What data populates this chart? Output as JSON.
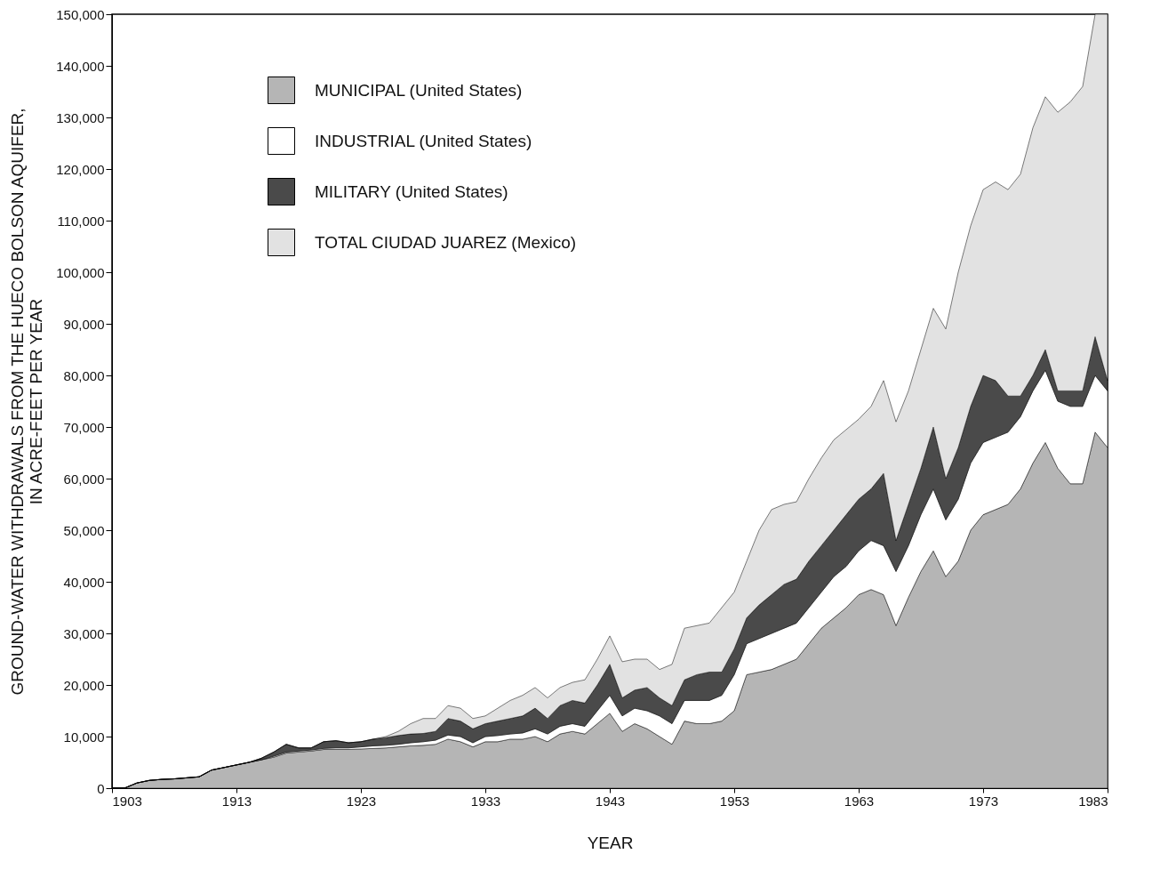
{
  "chart_data": {
    "type": "area",
    "stacked": true,
    "xlabel": "YEAR",
    "ylabel": "GROUND-WATER WITHDRAWALS FROM THE HUECO BOLSON AQUIFER,\nIN ACRE-FEET PER YEAR",
    "legend": "top left",
    "xlim": [
      1903,
      1983
    ],
    "ylim": [
      0,
      150000
    ],
    "xticks": [
      1903,
      1913,
      1923,
      1933,
      1943,
      1953,
      1963,
      1973,
      1983
    ],
    "yticks": [
      0,
      {
        "value": 10000,
        "label": "10,000"
      },
      {
        "value": 20000,
        "label": "20,000"
      },
      {
        "value": 30000,
        "label": "30,000"
      },
      {
        "value": 40000,
        "label": "40,000"
      },
      {
        "value": 50000,
        "label": "50,000"
      },
      {
        "value": 60000,
        "label": "60,000"
      },
      {
        "value": 70000,
        "label": "70,000"
      },
      {
        "value": 80000,
        "label": "80,000"
      },
      {
        "value": 90000,
        "label": "90,000"
      },
      {
        "value": 100000,
        "label": "100,000"
      },
      {
        "value": 110000,
        "label": "110,000"
      },
      {
        "value": 120000,
        "label": "120,000"
      },
      {
        "value": 130000,
        "label": "130,000"
      },
      {
        "value": 140000,
        "label": "140,000"
      },
      {
        "value": 150000,
        "label": "150,000"
      }
    ],
    "x": [
      1903,
      1904,
      1905,
      1906,
      1907,
      1908,
      1909,
      1910,
      1911,
      1912,
      1913,
      1914,
      1915,
      1916,
      1917,
      1918,
      1919,
      1920,
      1921,
      1922,
      1923,
      1924,
      1925,
      1926,
      1927,
      1928,
      1929,
      1930,
      1931,
      1932,
      1933,
      1934,
      1935,
      1936,
      1937,
      1938,
      1939,
      1940,
      1941,
      1942,
      1943,
      1944,
      1945,
      1946,
      1947,
      1948,
      1949,
      1950,
      1951,
      1952,
      1953,
      1954,
      1955,
      1956,
      1957,
      1958,
      1959,
      1960,
      1961,
      1962,
      1963,
      1964,
      1965,
      1966,
      1967,
      1968,
      1969,
      1970,
      1971,
      1972,
      1973,
      1974,
      1975,
      1976,
      1977,
      1978,
      1979,
      1980,
      1981,
      1982,
      1983
    ],
    "series": [
      {
        "name": "MUNICIPAL (United States)",
        "color": "#b5b5b5",
        "values": [
          0,
          0,
          1000,
          1500,
          1700,
          1800,
          2000,
          2200,
          3500,
          4000,
          4500,
          5000,
          5500,
          6000,
          6800,
          7000,
          7200,
          7500,
          7500,
          7500,
          7600,
          7700,
          7800,
          8000,
          8200,
          8300,
          8500,
          9500,
          9000,
          8000,
          9000,
          9000,
          9500,
          9500,
          10000,
          9000,
          10500,
          11000,
          10500,
          12500,
          14500,
          11000,
          12500,
          11500,
          10000,
          8500,
          13000,
          12500,
          12500,
          13000,
          15000,
          22000,
          22500,
          23000,
          24000,
          25000,
          28000,
          31000,
          33000,
          35000,
          37500,
          38500,
          37500,
          31500,
          37000,
          42000,
          46000,
          41000,
          44000,
          50000,
          53000,
          54000,
          55000,
          58000,
          63000,
          67000,
          62000,
          59000,
          59000,
          69000,
          66000
        ]
      },
      {
        "name": "INDUSTRIAL (United States)",
        "color": "#ffffff",
        "values": [
          0,
          0,
          0,
          0,
          0,
          0,
          0,
          0,
          0,
          0,
          0,
          0,
          0,
          200,
          200,
          200,
          200,
          200,
          300,
          300,
          400,
          500,
          500,
          500,
          600,
          700,
          800,
          800,
          1000,
          800,
          1000,
          1200,
          1000,
          1200,
          1500,
          1500,
          1500,
          1500,
          1500,
          2500,
          3500,
          3000,
          3000,
          3500,
          4000,
          4000,
          4000,
          4500,
          4500,
          5000,
          7000,
          6000,
          6500,
          7000,
          7000,
          7000,
          7000,
          7000,
          8000,
          8000,
          8500,
          9500,
          9500,
          10500,
          10000,
          11000,
          12000,
          11000,
          12000,
          13000,
          14000,
          14000,
          14000,
          14000,
          14000,
          14000,
          13000,
          15000,
          15000,
          11000,
          11000
        ]
      },
      {
        "name": "MILITARY  (United States)",
        "color": "#4a4a4a",
        "values": [
          0,
          0,
          0,
          0,
          0,
          0,
          0,
          0,
          0,
          0,
          0,
          0,
          300,
          800,
          1500,
          600,
          400,
          1300,
          1400,
          1000,
          1000,
          1300,
          1500,
          1700,
          1700,
          1600,
          1700,
          3200,
          3000,
          2700,
          2500,
          2800,
          3000,
          3300,
          4000,
          3000,
          4000,
          4500,
          4500,
          5000,
          6000,
          3500,
          3500,
          4500,
          3500,
          3500,
          4000,
          5000,
          5500,
          4500,
          5000,
          5000,
          6500,
          7500,
          8500,
          8500,
          9000,
          9000,
          9000,
          10000,
          10000,
          10000,
          14000,
          6000,
          8000,
          9000,
          12000,
          8000,
          10000,
          11000,
          13000,
          11000,
          7000,
          4000,
          3000,
          4000,
          2000,
          3000,
          3000,
          7500,
          2000
        ]
      },
      {
        "name": "TOTAL CIUDAD JUAREZ (Mexico)",
        "color": "#e2e2e2",
        "values": [
          0,
          0,
          0,
          0,
          0,
          0,
          0,
          0,
          0,
          0,
          0,
          0,
          0,
          0,
          0,
          0,
          0,
          0,
          0,
          0,
          0,
          0,
          200,
          800,
          2000,
          2900,
          2500,
          2500,
          2500,
          2000,
          1500,
          2500,
          3500,
          4000,
          4000,
          4000,
          3500,
          3500,
          4500,
          5000,
          5500,
          7000,
          6000,
          5500,
          5500,
          8000,
          10000,
          9500,
          9500,
          12500,
          11000,
          11000,
          14500,
          16500,
          15500,
          15000,
          16000,
          17000,
          17500,
          16500,
          15500,
          16000,
          18000,
          23000,
          22000,
          23000,
          23000,
          29000,
          34000,
          35000,
          36000,
          38500,
          40000,
          43000,
          48000,
          49000,
          54000,
          56000,
          59000,
          62500,
          71000
        ]
      }
    ]
  }
}
